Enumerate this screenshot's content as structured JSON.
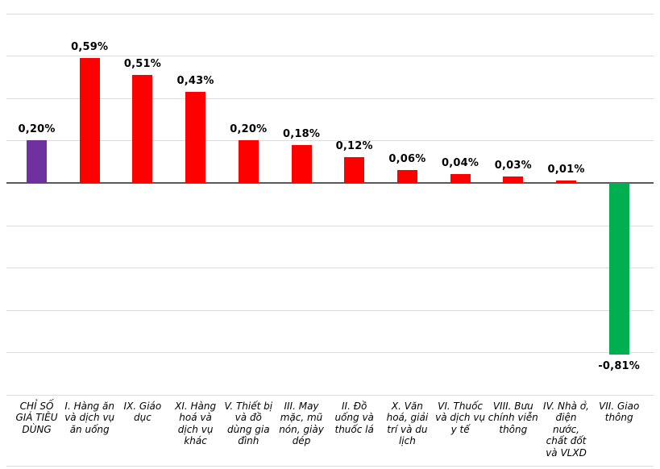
{
  "chart_data": {
    "type": "bar",
    "title": "",
    "xlabel": "",
    "ylabel": "",
    "unit": "%",
    "categories": [
      "CHỈ SỐ\nGIÁ TIÊU\nDÙNG",
      "I. Hàng ăn\nvà dịch vụ\năn uống",
      "IX. Giáo\ndục",
      "XI. Hàng\nhoá và\ndịch vụ\nkhác",
      "V. Thiết bị\nvà đồ\ndùng gia\nđình",
      "III. May\nmặc, mũ\nnón, giày\ndép",
      "II. Đồ\nuống và\nthuốc lá",
      "X. Văn\nhoá, giải\ntrí và du\nlịch",
      "VI. Thuốc\nvà dịch vụ\ny tế",
      "VIII. Bưu\nchính viễn\nthông",
      "IV. Nhà ở,\nđiện\nnước,\nchất đốt\nvà VLXD",
      "VII. Giao\nthông"
    ],
    "values": [
      0.2,
      0.59,
      0.51,
      0.43,
      0.2,
      0.18,
      0.12,
      0.06,
      0.04,
      0.03,
      0.01,
      -0.81
    ],
    "value_labels": [
      "0,20%",
      "0,59%",
      "0,51%",
      "0,43%",
      "0,20%",
      "0,18%",
      "0,12%",
      "0,06%",
      "0,04%",
      "0,03%",
      "0,01%",
      "-0,81%"
    ],
    "bar_colors": [
      "#7030A0",
      "#FF0000",
      "#FF0000",
      "#FF0000",
      "#FF0000",
      "#FF0000",
      "#FF0000",
      "#FF0000",
      "#FF0000",
      "#FF0000",
      "#FF0000",
      "#00B050"
    ],
    "ylim": [
      -1.0,
      0.8
    ],
    "gridline_step": 0.2,
    "grid": true,
    "legend": false,
    "colors": {
      "cpi_total": "#7030A0",
      "increase": "#FF0000",
      "decrease": "#00B050",
      "gridline": "#dddddd",
      "zero_axis": "#595959"
    }
  }
}
